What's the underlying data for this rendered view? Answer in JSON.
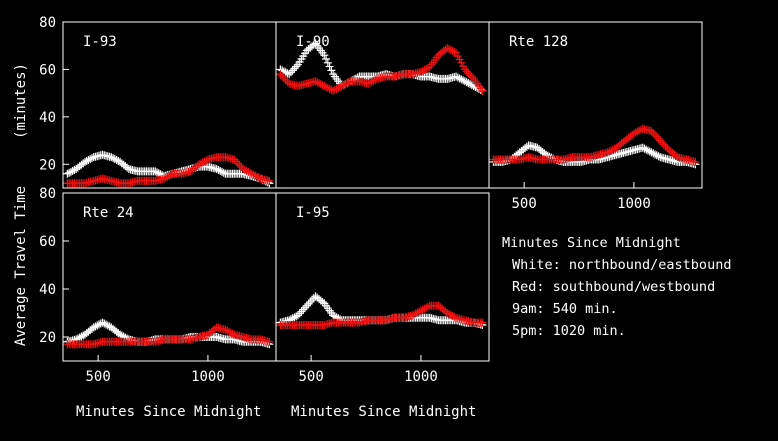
{
  "figure": {
    "y_axis_label_top": "(minutes)",
    "y_axis_label_bottom": "Average Travel Time",
    "x_axis_label_left": "Minutes Since Midnight",
    "x_axis_label_right": "Minutes Since Midnight"
  },
  "legend": {
    "title": "Minutes Since Midnight",
    "white": "White: northbound/eastbound",
    "red": "Red: southbound/westbound",
    "am": "9am: 540 min.",
    "pm": "5pm: 1020 min."
  },
  "colors": {
    "northbound": "#ffffff",
    "southbound": "#ee1111",
    "frame": "#ffffff",
    "background": "#000000"
  },
  "chart_data": [
    {
      "type": "scatter",
      "title": "I-93",
      "xlim": [
        340,
        1310
      ],
      "ylim": [
        10,
        80
      ],
      "yticks": [
        20,
        40,
        60,
        80
      ],
      "xticks": [],
      "series": [
        {
          "color": "white",
          "x": [
            360,
            400,
            440,
            480,
            520,
            560,
            600,
            640,
            680,
            720,
            760,
            800,
            840,
            880,
            920,
            960,
            1000,
            1040,
            1080,
            1120,
            1160,
            1200,
            1240,
            1280
          ],
          "y": [
            16,
            18,
            21,
            23,
            24,
            23,
            21,
            18,
            17,
            17,
            17,
            15,
            16,
            17,
            18,
            19,
            19,
            18,
            16,
            16,
            16,
            15,
            14,
            12
          ]
        },
        {
          "color": "red",
          "x": [
            360,
            400,
            440,
            480,
            520,
            560,
            600,
            640,
            680,
            720,
            760,
            800,
            840,
            880,
            920,
            960,
            1000,
            1040,
            1080,
            1120,
            1160,
            1200,
            1240,
            1280
          ],
          "y": [
            12,
            12,
            12,
            13,
            14,
            13,
            12,
            12,
            13,
            13,
            13,
            14,
            16,
            16,
            17,
            20,
            22,
            23,
            23,
            22,
            18,
            16,
            14,
            13
          ]
        }
      ]
    },
    {
      "type": "scatter",
      "title": "I-90",
      "xlim": [
        340,
        1310
      ],
      "ylim": [
        10,
        80
      ],
      "yticks": [],
      "xticks": [],
      "series": [
        {
          "color": "white",
          "x": [
            360,
            400,
            440,
            480,
            520,
            560,
            600,
            640,
            680,
            720,
            760,
            800,
            840,
            880,
            920,
            960,
            1000,
            1040,
            1080,
            1120,
            1160,
            1200,
            1240,
            1280
          ],
          "y": [
            60,
            58,
            62,
            68,
            71,
            66,
            58,
            53,
            55,
            57,
            57,
            57,
            58,
            57,
            58,
            58,
            57,
            57,
            56,
            56,
            57,
            55,
            53,
            51
          ]
        },
        {
          "color": "red",
          "x": [
            360,
            400,
            440,
            480,
            520,
            560,
            600,
            640,
            680,
            720,
            760,
            800,
            840,
            880,
            920,
            960,
            1000,
            1040,
            1080,
            1120,
            1160,
            1200,
            1240,
            1280
          ],
          "y": [
            58,
            54,
            53,
            54,
            55,
            53,
            51,
            53,
            55,
            55,
            54,
            56,
            57,
            57,
            58,
            58,
            59,
            61,
            66,
            69,
            67,
            60,
            56,
            51
          ]
        }
      ]
    },
    {
      "type": "scatter",
      "title": "Rte 128",
      "xlim": [
        340,
        1310
      ],
      "ylim": [
        10,
        80
      ],
      "yticks": [],
      "xticks": [
        500,
        1000
      ],
      "series": [
        {
          "color": "white",
          "x": [
            360,
            400,
            440,
            480,
            520,
            560,
            600,
            640,
            680,
            720,
            760,
            800,
            840,
            880,
            920,
            960,
            1000,
            1040,
            1080,
            1120,
            1160,
            1200,
            1240,
            1280
          ],
          "y": [
            21,
            21,
            22,
            25,
            28,
            27,
            24,
            22,
            21,
            21,
            21,
            22,
            22,
            23,
            24,
            25,
            26,
            27,
            25,
            23,
            22,
            21,
            21,
            20
          ]
        },
        {
          "color": "red",
          "x": [
            360,
            400,
            440,
            480,
            520,
            560,
            600,
            640,
            680,
            720,
            760,
            800,
            840,
            880,
            920,
            960,
            1000,
            1040,
            1080,
            1120,
            1160,
            1200,
            1240,
            1280
          ],
          "y": [
            22,
            22,
            22,
            22,
            23,
            22,
            22,
            22,
            22,
            23,
            23,
            23,
            24,
            25,
            27,
            30,
            33,
            35,
            34,
            30,
            26,
            23,
            22,
            21
          ]
        }
      ]
    },
    {
      "type": "scatter",
      "title": "Rte 24",
      "xlim": [
        340,
        1310
      ],
      "ylim": [
        10,
        80
      ],
      "yticks": [
        20,
        40,
        60,
        80
      ],
      "xticks": [
        500,
        1000
      ],
      "series": [
        {
          "color": "white",
          "x": [
            360,
            400,
            440,
            480,
            520,
            560,
            600,
            640,
            680,
            720,
            760,
            800,
            840,
            880,
            920,
            960,
            1000,
            1040,
            1080,
            1120,
            1160,
            1200,
            1240,
            1280
          ],
          "y": [
            18,
            19,
            21,
            24,
            26,
            24,
            21,
            19,
            18,
            18,
            19,
            19,
            19,
            19,
            20,
            20,
            20,
            20,
            19,
            19,
            18,
            18,
            18,
            17
          ]
        },
        {
          "color": "red",
          "x": [
            360,
            400,
            440,
            480,
            520,
            560,
            600,
            640,
            680,
            720,
            760,
            800,
            840,
            880,
            920,
            960,
            1000,
            1040,
            1080,
            1120,
            1160,
            1200,
            1240,
            1280
          ],
          "y": [
            17,
            17,
            17,
            17,
            18,
            18,
            18,
            18,
            18,
            18,
            18,
            19,
            19,
            19,
            19,
            20,
            21,
            24,
            23,
            21,
            20,
            19,
            19,
            18
          ]
        }
      ]
    },
    {
      "type": "scatter",
      "title": "I-95",
      "xlim": [
        340,
        1310
      ],
      "ylim": [
        10,
        80
      ],
      "yticks": [],
      "xticks": [
        500,
        1000
      ],
      "series": [
        {
          "color": "white",
          "x": [
            360,
            400,
            440,
            480,
            520,
            560,
            600,
            640,
            680,
            720,
            760,
            800,
            840,
            880,
            920,
            960,
            1000,
            1040,
            1080,
            1120,
            1160,
            1200,
            1240,
            1280
          ],
          "y": [
            26,
            27,
            29,
            33,
            37,
            34,
            29,
            27,
            27,
            27,
            27,
            27,
            27,
            28,
            28,
            28,
            28,
            28,
            27,
            27,
            27,
            26,
            26,
            25
          ]
        },
        {
          "color": "red",
          "x": [
            360,
            400,
            440,
            480,
            520,
            560,
            600,
            640,
            680,
            720,
            760,
            800,
            840,
            880,
            920,
            960,
            1000,
            1040,
            1080,
            1120,
            1160,
            1200,
            1240,
            1280
          ],
          "y": [
            25,
            25,
            25,
            25,
            25,
            25,
            26,
            26,
            26,
            26,
            27,
            27,
            27,
            28,
            28,
            29,
            31,
            33,
            33,
            30,
            28,
            27,
            26,
            26
          ]
        }
      ]
    }
  ]
}
